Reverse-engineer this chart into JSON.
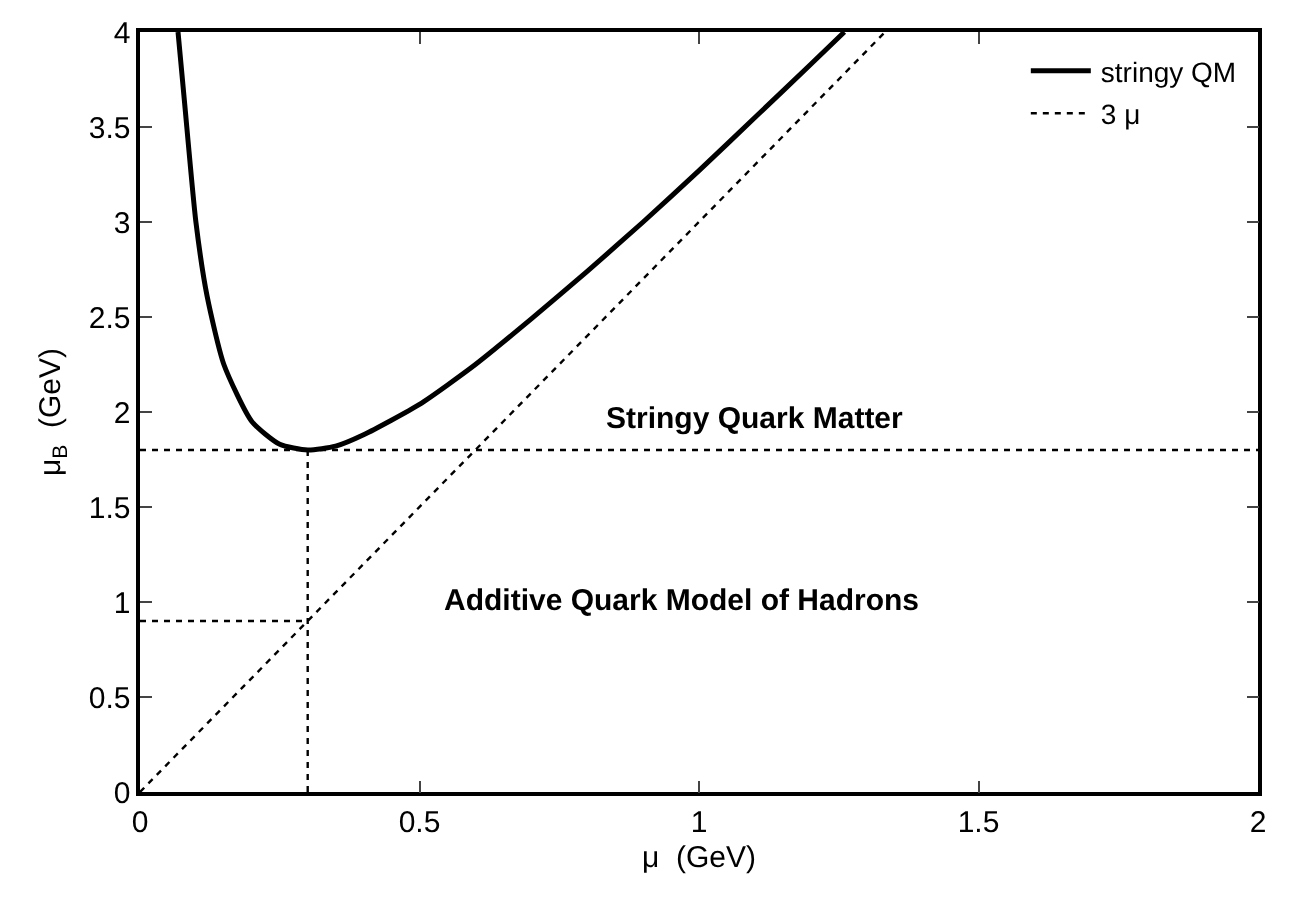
{
  "chart_data": {
    "type": "line",
    "xlabel": "μ  (GeV)",
    "ylabel": "μ$_{B}$  (GeV)",
    "xlim": [
      0,
      2
    ],
    "xticks": [
      0,
      0.5,
      1,
      1.5,
      2
    ],
    "ylim": [
      0,
      4
    ],
    "yticks": [
      0,
      0.5,
      1,
      1.5,
      2,
      2.5,
      3,
      3.5,
      4
    ],
    "legend": "top right",
    "marker": "none",
    "series": [
      {
        "name": "stringy QM",
        "color": "#000000",
        "line_style": "solid",
        "x": [
          0.068,
          0.08,
          0.1,
          0.12,
          0.15,
          0.2,
          0.25,
          0.3,
          0.35,
          0.4,
          0.5,
          0.6,
          0.7,
          0.8,
          0.9,
          1.0,
          1.1,
          1.2,
          1.26
        ],
        "values": [
          4.0,
          3.62,
          3.0,
          2.61,
          2.25,
          1.95,
          1.83,
          1.8,
          1.82,
          1.88,
          2.04,
          2.25,
          2.49,
          2.74,
          3.0,
          3.27,
          3.55,
          3.83,
          4.0
        ]
      },
      {
        "name": "3 μ",
        "color": "#000000",
        "line_style": "dotted",
        "x": [
          0,
          1.333
        ],
        "values": [
          0,
          4
        ]
      },
      {
        "color": "#000000",
        "line_style": "dotted",
        "x": [
          0,
          2
        ],
        "values": [
          1.8,
          1.8
        ]
      },
      {
        "color": "#000000",
        "line_style": "dotted",
        "x": [
          0.3,
          0.3
        ],
        "values": [
          0,
          1.8
        ]
      },
      {
        "color": "#000000",
        "line_style": "dotted",
        "x": [
          0,
          0.3
        ],
        "values": [
          0.9,
          0.9
        ]
      }
    ],
    "annotations": [
      "Stringy Quark Matter",
      "Additive Quark Model of Hadrons"
    ]
  }
}
